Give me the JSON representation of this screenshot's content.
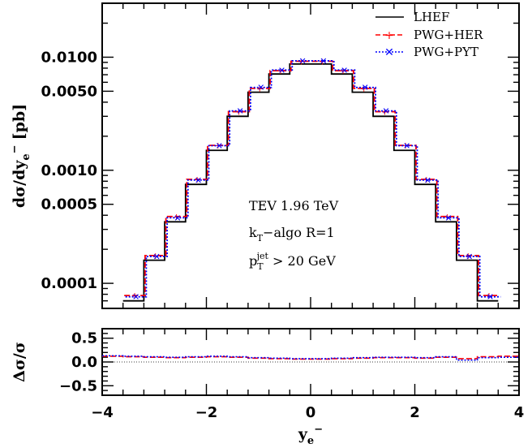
{
  "chart_data": [
    {
      "type": "line",
      "title": "",
      "ylabel": "dσ/dy",
      "ylabel_sub": "e",
      "ylabel_sup": "−",
      "ylabel_unit": "[pb]",
      "xlabel": "",
      "xlim": [
        -4,
        4
      ],
      "ylim": [
        6e-05,
        0.03
      ],
      "yscale": "log",
      "yticks": [
        0.0001,
        0.0005,
        0.001,
        0.005,
        0.01
      ],
      "ytick_labels": [
        "0.0001",
        "0.0005",
        "0.0010",
        "0.0050",
        "0.0100"
      ],
      "legend_position": "top-right",
      "bin_edges": [
        -3.6,
        -3.2,
        -2.8,
        -2.4,
        -2.0,
        -1.6,
        -1.2,
        -0.8,
        -0.4,
        0.0,
        0.4,
        0.8,
        1.2,
        1.6,
        2.0,
        2.4,
        2.8,
        3.2,
        3.6
      ],
      "series": [
        {
          "name": "LHEF",
          "color": "#000000",
          "style": "solid",
          "values": [
            7e-05,
            0.00016,
            0.00035,
            0.00075,
            0.0015,
            0.003,
            0.0049,
            0.0071,
            0.0087,
            0.0087,
            0.0071,
            0.0049,
            0.003,
            0.0015,
            0.00075,
            0.00035,
            0.00016,
            7e-05
          ]
        },
        {
          "name": "PWG+HER",
          "color": "#ff0000",
          "style": "dashed",
          "marker": "plus",
          "values": [
            7.8e-05,
            0.000176,
            0.00039,
            0.00083,
            0.00166,
            0.0033,
            0.0053,
            0.0076,
            0.0092,
            0.0092,
            0.0076,
            0.0053,
            0.0033,
            0.00166,
            0.00083,
            0.00039,
            0.000176,
            7.8e-05
          ]
        },
        {
          "name": "PWG+PYT",
          "color": "#0000ff",
          "style": "dotted",
          "marker": "star",
          "values": [
            7.6e-05,
            0.000173,
            0.00038,
            0.00082,
            0.00165,
            0.00335,
            0.0054,
            0.0077,
            0.0093,
            0.0093,
            0.0077,
            0.0054,
            0.00335,
            0.00165,
            0.00082,
            0.00038,
            0.000173,
            7.6e-05
          ]
        }
      ],
      "annotations": {
        "line1": "TEV 1.96 TeV",
        "line2_main": "k",
        "line2_sub": "T",
        "line2_rest": "−algo R=1",
        "line3_main": "p",
        "line3_sub": "T",
        "line3_sup": "jet",
        "line3_rest": " > 20 GeV"
      }
    },
    {
      "type": "line",
      "title": "",
      "ylabel": "Δσ/σ",
      "xlabel": "y",
      "xlabel_sub": "e",
      "xlabel_sup": "−",
      "xlim": [
        -4,
        4
      ],
      "ylim": [
        -0.7,
        0.7
      ],
      "yticks": [
        -0.5,
        0.0,
        0.5
      ],
      "ytick_labels": [
        "−0.5",
        "0.0",
        "0.5"
      ],
      "xticks": [
        -4,
        -2,
        0,
        2,
        4
      ],
      "xtick_labels": [
        "−4",
        "−2",
        "0",
        "2",
        "4"
      ],
      "bin_edges": [
        -4.0,
        -3.6,
        -3.2,
        -2.8,
        -2.4,
        -2.0,
        -1.6,
        -1.2,
        -0.8,
        -0.4,
        0.0,
        0.4,
        0.8,
        1.2,
        1.6,
        2.0,
        2.4,
        2.8,
        3.2,
        3.6,
        4.0
      ],
      "series": [
        {
          "name": "PWG+HER",
          "color": "#ff0000",
          "style": "dashed",
          "values": [
            0.12,
            0.11,
            0.1,
            0.09,
            0.1,
            0.11,
            0.1,
            0.08,
            0.07,
            0.06,
            0.06,
            0.07,
            0.08,
            0.09,
            0.09,
            0.08,
            0.1,
            0.07,
            0.11,
            0.12
          ]
        },
        {
          "name": "PWG+PYT",
          "color": "#0000ff",
          "style": "dotted",
          "values": [
            0.13,
            0.12,
            0.11,
            0.1,
            0.11,
            0.12,
            0.11,
            0.09,
            0.08,
            0.07,
            0.07,
            0.08,
            0.09,
            0.1,
            0.1,
            0.09,
            0.11,
            0.04,
            0.09,
            0.1
          ]
        }
      ],
      "reference_line": 0.0
    }
  ]
}
